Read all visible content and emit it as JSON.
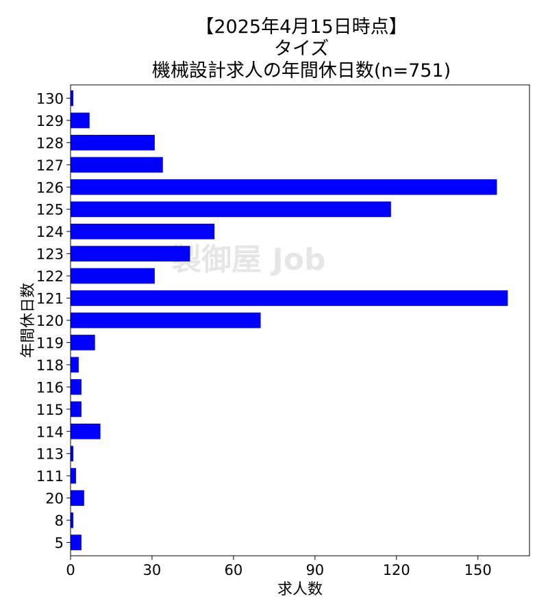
{
  "chart_data": {
    "type": "bar",
    "orientation": "horizontal",
    "title_lines": [
      "【2025年4月15日時点】",
      "タイズ",
      "機械設計求人の年間休日数(n=751)"
    ],
    "xlabel": "求人数",
    "ylabel": "年間休日数",
    "categories": [
      "130",
      "129",
      "128",
      "127",
      "126",
      "125",
      "124",
      "123",
      "122",
      "121",
      "120",
      "119",
      "118",
      "116",
      "115",
      "114",
      "113",
      "111",
      "20",
      "8",
      "5"
    ],
    "values": [
      1,
      7,
      31,
      34,
      157,
      118,
      53,
      44,
      31,
      161,
      70,
      9,
      3,
      4,
      4,
      11,
      1,
      2,
      5,
      1,
      4
    ],
    "xlim": [
      0,
      169
    ],
    "xticks": [
      0,
      30,
      60,
      90,
      120,
      150
    ],
    "bar_color": "#0000ff",
    "grid": false,
    "watermark": "製御屋 Job"
  }
}
